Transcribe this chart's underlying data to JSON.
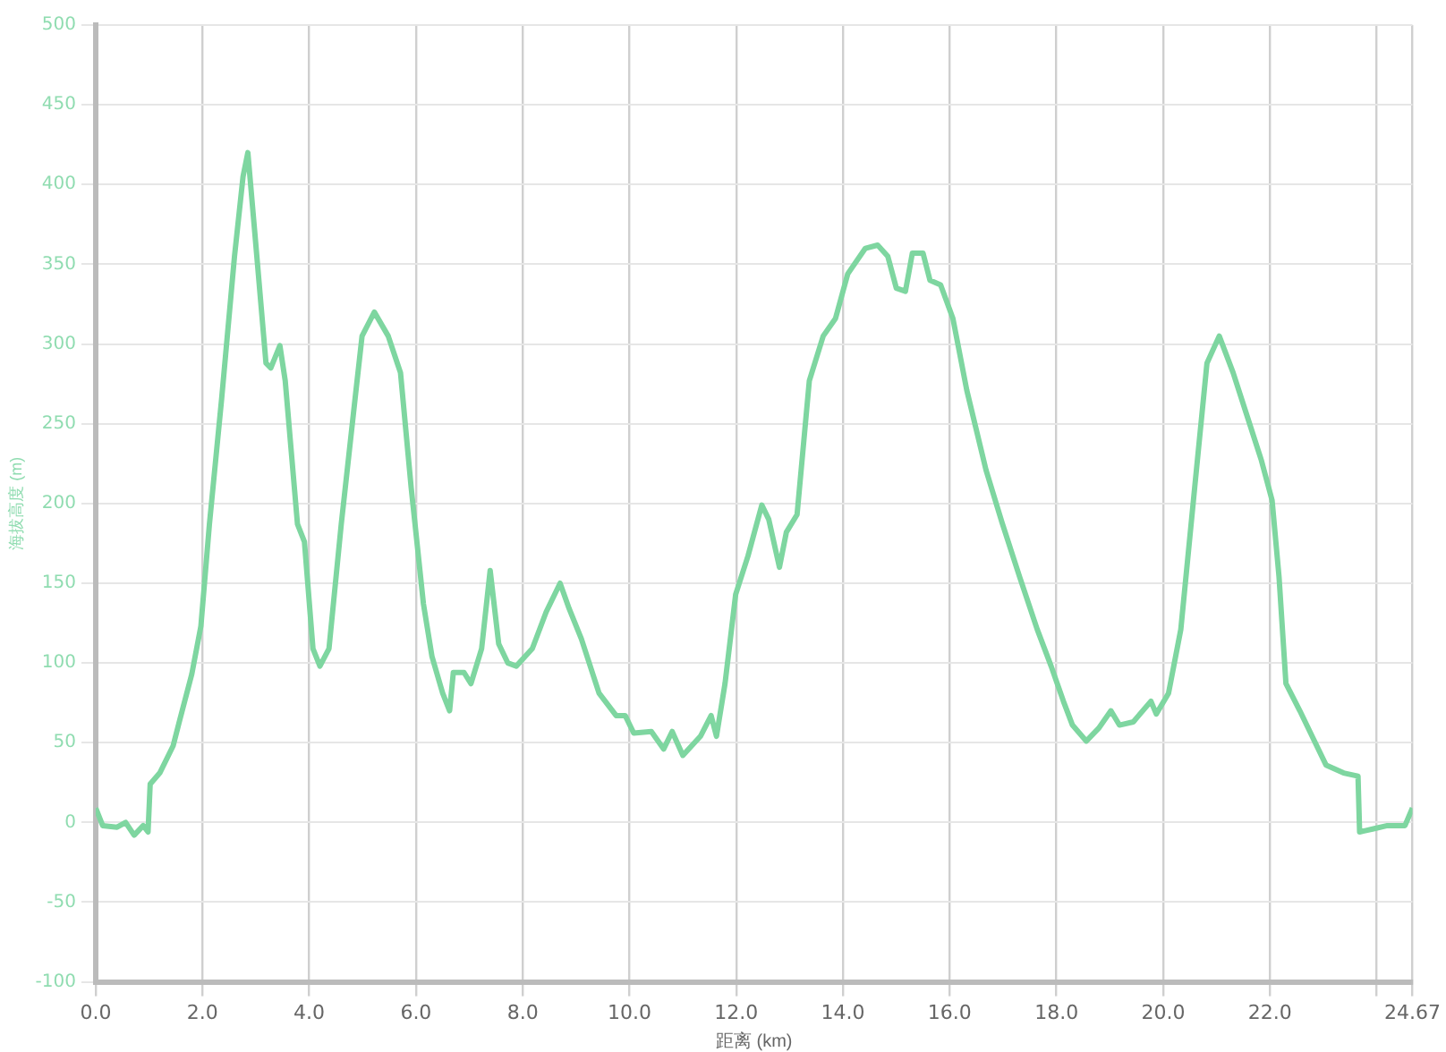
{
  "chart_data": {
    "type": "line",
    "xlabel": "距离 (km)",
    "ylabel": "海拔高度 (m)",
    "xlim": [
      0,
      24.67
    ],
    "xticks": [
      {
        "value": 0,
        "label": "0.0"
      },
      {
        "value": 2,
        "label": "2.0"
      },
      {
        "value": 4,
        "label": "4.0"
      },
      {
        "value": 6,
        "label": "6.0"
      },
      {
        "value": 8,
        "label": "8.0"
      },
      {
        "value": 10,
        "label": "10.0"
      },
      {
        "value": 12,
        "label": "12.0"
      },
      {
        "value": 14,
        "label": "14.0"
      },
      {
        "value": 16,
        "label": "16.0"
      },
      {
        "value": 18,
        "label": "18.0"
      },
      {
        "value": 20,
        "label": "20.0"
      },
      {
        "value": 22,
        "label": "22.0"
      },
      {
        "value": 24,
        "label": null
      },
      24.67
    ],
    "ylim": [
      -100,
      500
    ],
    "yticks": [
      -100,
      -50,
      0,
      50,
      100,
      150,
      200,
      250,
      300,
      350,
      400,
      450,
      500
    ],
    "grid": true,
    "marker": "none",
    "line_style": "solid",
    "series": [
      {
        "color": "#7ed6a0",
        "x": [
          0,
          0.13,
          0.4,
          0.56,
          0.72,
          0.89,
          0.98,
          1.02,
          1.2,
          1.45,
          1.58,
          1.8,
          1.97,
          2.13,
          2.36,
          2.6,
          2.76,
          2.85,
          2.99,
          3.19,
          3.28,
          3.45,
          3.55,
          3.78,
          3.91,
          4.07,
          4.2,
          4.37,
          4.6,
          4.86,
          4.99,
          5.22,
          5.48,
          5.65,
          5.71,
          5.91,
          6.14,
          6.3,
          6.5,
          6.63,
          6.7,
          6.9,
          7.03,
          7.23,
          7.39,
          7.55,
          7.72,
          7.88,
          8.18,
          8.44,
          8.7,
          8.87,
          9.1,
          9.43,
          9.75,
          9.92,
          10.08,
          10.41,
          10.64,
          10.8,
          11.0,
          11.33,
          11.53,
          11.63,
          11.79,
          11.99,
          12.22,
          12.48,
          12.61,
          12.81,
          12.94,
          13.14,
          13.37,
          13.63,
          13.86,
          14.09,
          14.42,
          14.65,
          14.84,
          15.0,
          15.17,
          15.3,
          15.5,
          15.63,
          15.83,
          16.06,
          16.32,
          16.68,
          16.98,
          17.31,
          17.64,
          17.9,
          18.13,
          18.3,
          18.56,
          18.79,
          19.02,
          19.18,
          19.44,
          19.77,
          19.87,
          20.1,
          20.33,
          20.59,
          20.82,
          21.05,
          21.31,
          21.58,
          21.84,
          22.04,
          22.17,
          22.3,
          22.56,
          22.79,
          23.05,
          23.38,
          23.65,
          23.68,
          23.94,
          24.2,
          24.53,
          24.67
        ],
        "values": [
          9,
          -2,
          -3,
          0,
          -8,
          -2,
          -6,
          24,
          31,
          48,
          65,
          93,
          123,
          187,
          266,
          355,
          405,
          420,
          366,
          288,
          285,
          299,
          277,
          187,
          176,
          109,
          98,
          109,
          187,
          266,
          305,
          320,
          305,
          288,
          282,
          210,
          137,
          104,
          81,
          70,
          94,
          94,
          87,
          109,
          158,
          112,
          100,
          98,
          109,
          132,
          150,
          134,
          115,
          81,
          67,
          67,
          56,
          57,
          46,
          57,
          42,
          54,
          67,
          54,
          87,
          143,
          167,
          199,
          190,
          160,
          182,
          193,
          277,
          305,
          316,
          344,
          360,
          362,
          355,
          335,
          333,
          357,
          357,
          340,
          337,
          316,
          271,
          221,
          188,
          154,
          121,
          98,
          76,
          61,
          51,
          59,
          70,
          61,
          63,
          76,
          68,
          81,
          121,
          210,
          288,
          305,
          282,
          254,
          227,
          202,
          154,
          87,
          70,
          54,
          36,
          31,
          29,
          -6,
          -4,
          -2,
          -2,
          9
        ]
      }
    ]
  }
}
